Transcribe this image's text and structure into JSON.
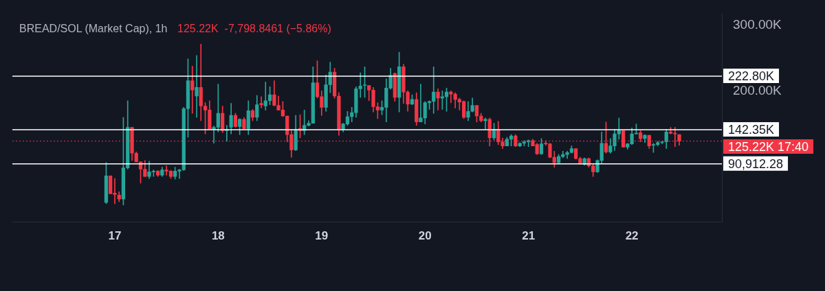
{
  "chart_data": {
    "type": "candlestick",
    "title": "BREAD/SOL (Market Cap), 1h",
    "annotations": [
      "125.22K  -7,798.8461 (−5.86%)"
    ],
    "x": [
      16.917,
      16.958,
      17,
      17.042,
      17.083,
      17.125,
      17.167,
      17.208,
      17.25,
      17.292,
      17.333,
      17.375,
      17.417,
      17.458,
      17.5,
      17.542,
      17.583,
      17.625,
      17.667,
      17.708,
      17.75,
      17.792,
      17.833,
      17.875,
      17.917,
      17.958,
      18,
      18.042,
      18.083,
      18.125,
      18.167,
      18.208,
      18.25,
      18.292,
      18.333,
      18.375,
      18.417,
      18.458,
      18.5,
      18.542,
      18.583,
      18.625,
      18.667,
      18.708,
      18.75,
      18.792,
      18.833,
      18.875,
      18.917,
      18.958,
      19,
      19.042,
      19.083,
      19.125,
      19.167,
      19.208,
      19.25,
      19.292,
      19.333,
      19.375,
      19.417,
      19.458,
      19.5,
      19.542,
      19.583,
      19.625,
      19.667,
      19.708,
      19.75,
      19.792,
      19.833,
      19.875,
      19.917,
      19.958,
      20,
      20.042,
      20.083,
      20.125,
      20.167,
      20.208,
      20.25,
      20.292,
      20.333,
      20.375,
      20.417,
      20.458,
      20.5,
      20.542,
      20.583,
      20.625,
      20.667,
      20.708,
      20.75,
      20.792,
      20.833,
      20.875,
      20.917,
      20.958,
      21,
      21.042,
      21.083,
      21.125,
      21.167,
      21.208,
      21.25,
      21.292,
      21.333,
      21.375,
      21.417,
      21.458,
      21.5,
      21.542,
      21.583,
      21.625,
      21.667,
      21.708,
      21.75,
      21.792,
      21.833,
      21.875,
      21.917,
      21.958,
      22,
      22.042,
      22.083,
      22.125,
      22.167,
      22.208,
      22.25,
      22.292,
      22.333,
      22.375,
      22.417,
      22.458
    ],
    "ohlc": [
      [
        33,
        93,
        31,
        73
      ],
      [
        73,
        73,
        46,
        46
      ],
      [
        47,
        69,
        31,
        45
      ],
      [
        44,
        49,
        34,
        38
      ],
      [
        38,
        161,
        29,
        85
      ],
      [
        85,
        186,
        83,
        146
      ],
      [
        146,
        146,
        96,
        107
      ],
      [
        107,
        109,
        94,
        94
      ],
      [
        94,
        94,
        62,
        83
      ],
      [
        83,
        96,
        72,
        72
      ],
      [
        72,
        95,
        69,
        79
      ],
      [
        79,
        82,
        72,
        80
      ],
      [
        80,
        81,
        72,
        74
      ],
      [
        74,
        86,
        72,
        82
      ],
      [
        82,
        88,
        74,
        80
      ],
      [
        80,
        81,
        69,
        72
      ],
      [
        72,
        86,
        68,
        80
      ],
      [
        80,
        83,
        69,
        82
      ],
      [
        82,
        176,
        81,
        174
      ],
      [
        174,
        249,
        131,
        216
      ],
      [
        216,
        238,
        167,
        202
      ],
      [
        193,
        254,
        161,
        206
      ],
      [
        206,
        271,
        156,
        178
      ],
      [
        178,
        183,
        136,
        172
      ],
      [
        172,
        186,
        143,
        143
      ],
      [
        143,
        148,
        122,
        146
      ],
      [
        146,
        211,
        139,
        167
      ],
      [
        167,
        178,
        138,
        141
      ],
      [
        141,
        149,
        125,
        143
      ],
      [
        146,
        182,
        136,
        164
      ],
      [
        164,
        167,
        146,
        147
      ],
      [
        147,
        159,
        135,
        158
      ],
      [
        158,
        161,
        143,
        144
      ],
      [
        144,
        186,
        135,
        171
      ],
      [
        171,
        173,
        156,
        161
      ],
      [
        161,
        194,
        156,
        180
      ],
      [
        182,
        192,
        175,
        180
      ],
      [
        178,
        214,
        172,
        186
      ],
      [
        186,
        207,
        180,
        195
      ],
      [
        195,
        216,
        178,
        179
      ],
      [
        179,
        193,
        172,
        172
      ],
      [
        172,
        185,
        162,
        163
      ],
      [
        163,
        163,
        124,
        135
      ],
      [
        135,
        143,
        101,
        112
      ],
      [
        112,
        164,
        111,
        143
      ],
      [
        144,
        165,
        130,
        141
      ],
      [
        141,
        172,
        135,
        149
      ],
      [
        149,
        156,
        148,
        152
      ],
      [
        152,
        237,
        152,
        213
      ],
      [
        213,
        246,
        190,
        192
      ],
      [
        192,
        201,
        164,
        176
      ],
      [
        176,
        225,
        170,
        210
      ],
      [
        210,
        244,
        198,
        229
      ],
      [
        229,
        235,
        190,
        193
      ],
      [
        193,
        198,
        134,
        143
      ],
      [
        143,
        152,
        139,
        151
      ],
      [
        151,
        170,
        149,
        162
      ],
      [
        162,
        176,
        154,
        168
      ],
      [
        168,
        207,
        161,
        204
      ],
      [
        204,
        228,
        191,
        208
      ],
      [
        209,
        237,
        191,
        210
      ],
      [
        209,
        209,
        186,
        202
      ],
      [
        202,
        206,
        169,
        177
      ],
      [
        177,
        183,
        159,
        172
      ],
      [
        172,
        186,
        165,
        176
      ],
      [
        176,
        219,
        154,
        205
      ],
      [
        205,
        235,
        203,
        224
      ],
      [
        227,
        228,
        185,
        191
      ],
      [
        191,
        259,
        169,
        237
      ],
      [
        237,
        241,
        182,
        199
      ],
      [
        199,
        201,
        170,
        181
      ],
      [
        181,
        195,
        180,
        188
      ],
      [
        188,
        198,
        149,
        154
      ],
      [
        154,
        211,
        154,
        160
      ],
      [
        160,
        185,
        151,
        183
      ],
      [
        183,
        186,
        173,
        185
      ],
      [
        185,
        237,
        167,
        199
      ],
      [
        199,
        204,
        172,
        190
      ],
      [
        190,
        201,
        173,
        192
      ],
      [
        192,
        205,
        170,
        199
      ],
      [
        199,
        201,
        183,
        196
      ],
      [
        196,
        198,
        175,
        188
      ],
      [
        188,
        190,
        172,
        184
      ],
      [
        185,
        186,
        159,
        161
      ],
      [
        161,
        185,
        156,
        170
      ],
      [
        170,
        190,
        169,
        179
      ],
      [
        179,
        179,
        154,
        163
      ],
      [
        163,
        167,
        154,
        156
      ],
      [
        156,
        160,
        143,
        158
      ],
      [
        158,
        160,
        118,
        130
      ],
      [
        130,
        152,
        127,
        143
      ],
      [
        143,
        155,
        120,
        124
      ],
      [
        124,
        130,
        114,
        118
      ],
      [
        118,
        131,
        118,
        128
      ],
      [
        128,
        135,
        118,
        133
      ],
      [
        133,
        135,
        117,
        118
      ],
      [
        118,
        123,
        117,
        122
      ],
      [
        122,
        126,
        118,
        124
      ],
      [
        124,
        127,
        117,
        126
      ],
      [
        126,
        128,
        118,
        118
      ],
      [
        120,
        122,
        105,
        106
      ],
      [
        106,
        129,
        105,
        121
      ],
      [
        122,
        126,
        119,
        121
      ],
      [
        121,
        122,
        100,
        101
      ],
      [
        101,
        110,
        86,
        93
      ],
      [
        93,
        105,
        92,
        102
      ],
      [
        102,
        110,
        100,
        105
      ],
      [
        105,
        110,
        99,
        108
      ],
      [
        108,
        118,
        107,
        114
      ],
      [
        114,
        114,
        98,
        99
      ],
      [
        99,
        101,
        90,
        91
      ],
      [
        90,
        100,
        89,
        99
      ],
      [
        99,
        100,
        86,
        88
      ],
      [
        88,
        91,
        72,
        79
      ],
      [
        79,
        97,
        78,
        96
      ],
      [
        96,
        139,
        91,
        122
      ],
      [
        122,
        154,
        107,
        109
      ],
      [
        109,
        129,
        107,
        118
      ],
      [
        118,
        143,
        111,
        136
      ],
      [
        136,
        160,
        128,
        141
      ],
      [
        141,
        141,
        116,
        116
      ],
      [
        116,
        122,
        113,
        121
      ],
      [
        121,
        145,
        120,
        136
      ],
      [
        136,
        151,
        136,
        137
      ],
      [
        138,
        141,
        124,
        129
      ],
      [
        129,
        135,
        123,
        134
      ],
      [
        134,
        134,
        114,
        118
      ],
      [
        119,
        122,
        108,
        120
      ],
      [
        120,
        125,
        118,
        123
      ],
      [
        123,
        125,
        121,
        124
      ],
      [
        124,
        143,
        114,
        139
      ],
      [
        139,
        146,
        136,
        137
      ],
      [
        137,
        146,
        117,
        136
      ],
      [
        135,
        135,
        119,
        125.22
      ]
    ],
    "xlim": [
      16.01,
      22.87
    ],
    "xticks": [
      17,
      18,
      19,
      20,
      21,
      22
    ],
    "ylim": [
      4,
      317.5
    ],
    "yticks": [
      {
        "value": 300,
        "label": "300.00K"
      },
      {
        "value": 200,
        "label": "200.00K"
      }
    ],
    "ref_lines": [
      {
        "axis": "y",
        "value": 222.8,
        "label": "222.80K",
        "color": "#ffffff",
        "line_style": "solid"
      },
      {
        "axis": "y",
        "value": 142.35,
        "label": "142.35K",
        "color": "#ffffff",
        "line_style": "solid"
      },
      {
        "axis": "y",
        "value": 125.22,
        "label": "125.22K 17:40",
        "color": "#f23645",
        "line_style": "dotted"
      },
      {
        "axis": "y",
        "value": 90.91228,
        "label": "90,912.28",
        "color": "#ffffff",
        "line_style": "solid"
      }
    ]
  }
}
